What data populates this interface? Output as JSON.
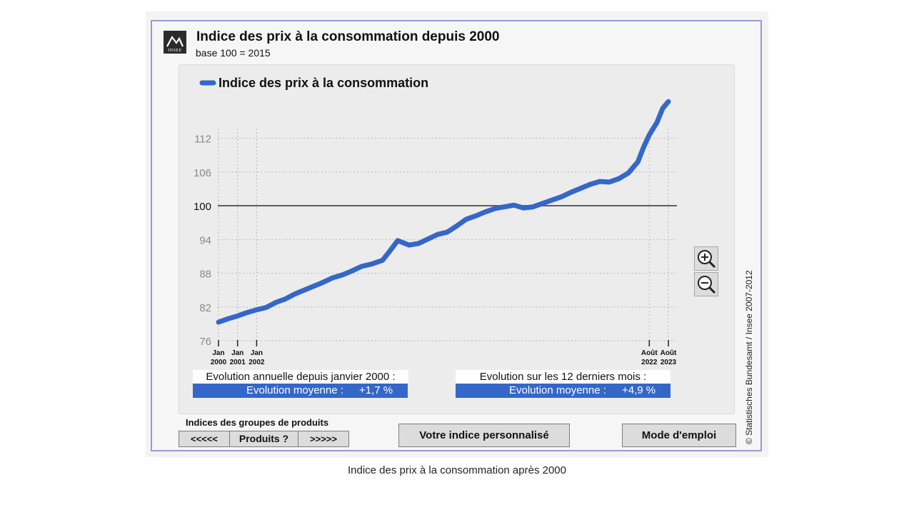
{
  "header": {
    "title": "Indice des prix à la consommation depuis 2000",
    "subtitle": "base 100  =  2015",
    "logo_text": "INSEE"
  },
  "chart_data": {
    "type": "line",
    "legend": "Indice des prix à la consommation",
    "series_color": "#3567c9",
    "baseline": 100,
    "ylim": [
      76,
      118
    ],
    "yticks": [
      "112",
      "106",
      "100",
      "94",
      "88",
      "82",
      "76"
    ],
    "xlim": [
      2000.0,
      2023.75
    ],
    "xtick_labels": [
      {
        "line1": "Jan",
        "line2": "2000"
      },
      {
        "line1": "Jan",
        "line2": "2001"
      },
      {
        "line1": "Jan",
        "line2": "2002"
      },
      {
        "line1": "Août",
        "line2": "2022"
      },
      {
        "line1": "Août",
        "line2": "2023"
      }
    ],
    "x": [
      2000.0,
      2000.5,
      2001.0,
      2001.5,
      2002.0,
      2002.5,
      2003.0,
      2003.5,
      2004.0,
      2004.5,
      2005.0,
      2005.5,
      2006.0,
      2006.5,
      2007.0,
      2007.5,
      2008.0,
      2008.6,
      2009.0,
      2009.4,
      2010.0,
      2010.5,
      2011.0,
      2011.5,
      2012.0,
      2012.5,
      2013.0,
      2013.5,
      2014.0,
      2014.5,
      2015.0,
      2015.5,
      2016.0,
      2016.5,
      2017.0,
      2017.5,
      2018.0,
      2018.5,
      2019.0,
      2019.5,
      2020.0,
      2020.5,
      2021.0,
      2021.5,
      2022.0,
      2022.3,
      2022.6,
      2023.0,
      2023.3,
      2023.6
    ],
    "y": [
      79.3,
      79.9,
      80.4,
      81.0,
      81.5,
      81.9,
      82.8,
      83.4,
      84.3,
      85.0,
      85.7,
      86.4,
      87.2,
      87.7,
      88.4,
      89.2,
      89.6,
      90.3,
      92.0,
      93.8,
      93.0,
      93.3,
      94.1,
      94.9,
      95.3,
      96.4,
      97.6,
      98.2,
      98.9,
      99.5,
      99.8,
      100.1,
      99.6,
      99.8,
      100.4,
      101.0,
      101.6,
      102.4,
      103.1,
      103.8,
      104.3,
      104.2,
      104.8,
      105.8,
      107.8,
      110.4,
      112.6,
      114.8,
      117.3,
      118.5
    ]
  },
  "stats": {
    "annual_label": "Evolution annuelle depuis janvier 2000 :",
    "annual_mean_label": "Evolution moyenne :",
    "annual_mean_value": "+1,7 %",
    "recent_label": "Evolution sur les 12 derniers mois :",
    "recent_mean_label": "Evolution moyenne :",
    "recent_mean_value": "+4,9 %"
  },
  "zoom": {
    "in_icon": "zoom-in-icon",
    "out_icon": "zoom-out-icon"
  },
  "copyright": "© Statistisches Bundesamt / Insee 2007-2012",
  "groups": {
    "title": "Indices des groupes de produits",
    "prev_label": "<<<<<",
    "products_label": "Produits ?",
    "next_label": ">>>>>"
  },
  "buttons": {
    "personal_index": "Votre indice personnalisé",
    "user_guide": "Mode d'emploi"
  },
  "caption": "Indice des prix à la consommation après 2000"
}
